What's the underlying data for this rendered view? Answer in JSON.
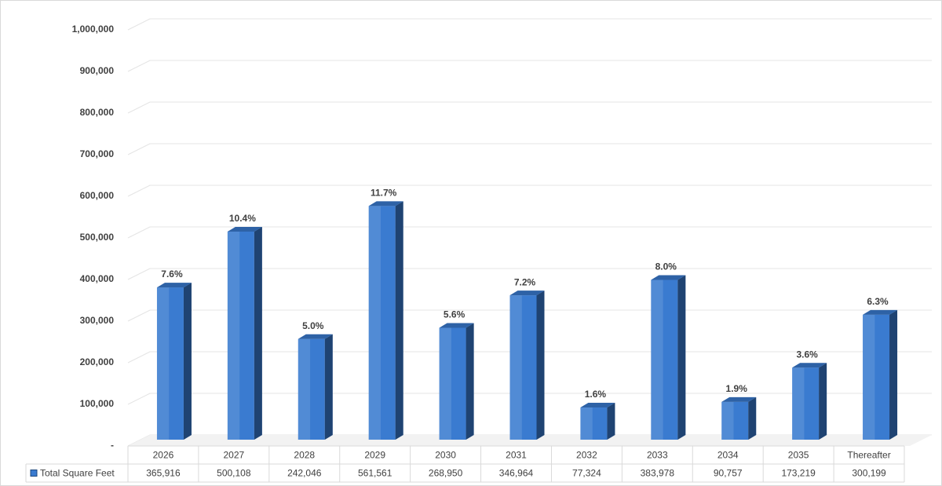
{
  "chart_data": {
    "type": "bar3d",
    "categories": [
      "2026",
      "2027",
      "2028",
      "2029",
      "2030",
      "2031",
      "2032",
      "2033",
      "2034",
      "2035",
      "Thereafter"
    ],
    "series": [
      {
        "name": "Total Square Feet",
        "color": "#3a7bd0",
        "values": [
          365916,
          500108,
          242046,
          561561,
          268950,
          346964,
          77324,
          383978,
          90757,
          173219,
          300199
        ],
        "value_labels": [
          "365,916",
          "500,108",
          "242,046",
          "561,561",
          "268,950",
          "346,964",
          "77,324",
          "383,978",
          "90,757",
          "173,219",
          "300,199"
        ],
        "percent_labels": [
          "7.6%",
          "10.4%",
          "5.0%",
          "11.7%",
          "5.6%",
          "7.2%",
          "1.6%",
          "8.0%",
          "1.9%",
          "3.6%",
          "6.3%"
        ]
      }
    ],
    "ylim": [
      0,
      1000000
    ],
    "yticks": [
      {
        "value": 0,
        "label": "-"
      },
      {
        "value": 100000,
        "label": "100,000"
      },
      {
        "value": 200000,
        "label": "200,000"
      },
      {
        "value": 300000,
        "label": "300,000"
      },
      {
        "value": 400000,
        "label": "400,000"
      },
      {
        "value": 500000,
        "label": "500,000"
      },
      {
        "value": 600000,
        "label": "600,000"
      },
      {
        "value": 700000,
        "label": "700,000"
      },
      {
        "value": 800000,
        "label": "800,000"
      },
      {
        "value": 900000,
        "label": "900,000"
      },
      {
        "value": 1000000,
        "label": "1,000,000"
      }
    ],
    "grid": true
  }
}
